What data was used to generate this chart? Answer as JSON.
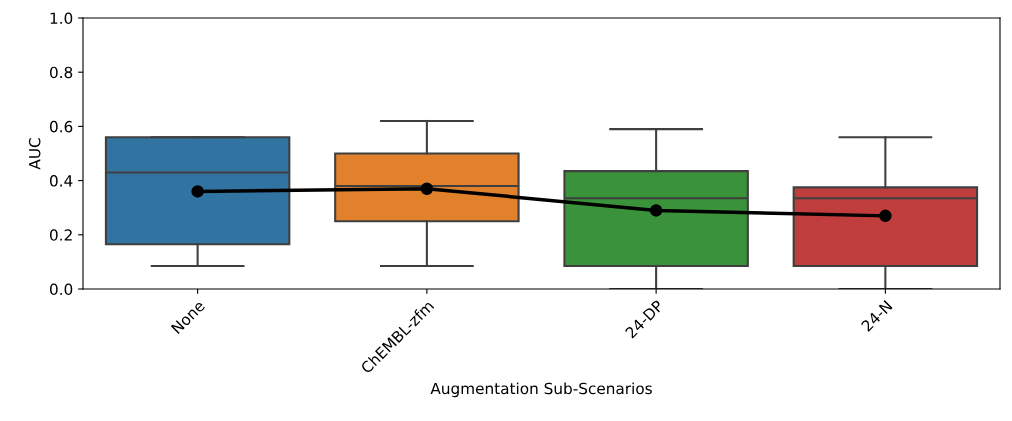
{
  "chart_data": {
    "type": "box",
    "xlabel": "Augmentation Sub-Scenarios",
    "ylabel": "AUC",
    "categories": [
      "None",
      "ChEMBL-zfm",
      "24-DP",
      "24-N"
    ],
    "colors": [
      "#3274a1",
      "#e1812c",
      "#3a923a",
      "#c03d3e"
    ],
    "boxes": [
      {
        "low": 0.085,
        "q1": 0.165,
        "median": 0.43,
        "q3": 0.56,
        "high": 0.56
      },
      {
        "low": 0.085,
        "q1": 0.25,
        "median": 0.38,
        "q3": 0.5,
        "high": 0.62
      },
      {
        "low": 0.0,
        "q1": 0.085,
        "median": 0.335,
        "q3": 0.435,
        "high": 0.59
      },
      {
        "low": 0.0,
        "q1": 0.085,
        "median": 0.335,
        "q3": 0.375,
        "high": 0.56
      }
    ],
    "series": [
      {
        "type": "line",
        "color": "#000000",
        "values": [
          0.36,
          0.37,
          0.29,
          0.27
        ]
      }
    ],
    "marker": "circle",
    "ylim": [
      0,
      1.0
    ],
    "yticks": [
      {
        "value": 0,
        "label": "0.0"
      },
      {
        "value": 0.2,
        "label": "0.2"
      },
      {
        "value": 0.4,
        "label": "0.4"
      },
      {
        "value": 0.6,
        "label": "0.6"
      },
      {
        "value": 0.8,
        "label": "0.8"
      },
      {
        "value": 1.0,
        "label": "1.0"
      }
    ],
    "grid": false
  }
}
